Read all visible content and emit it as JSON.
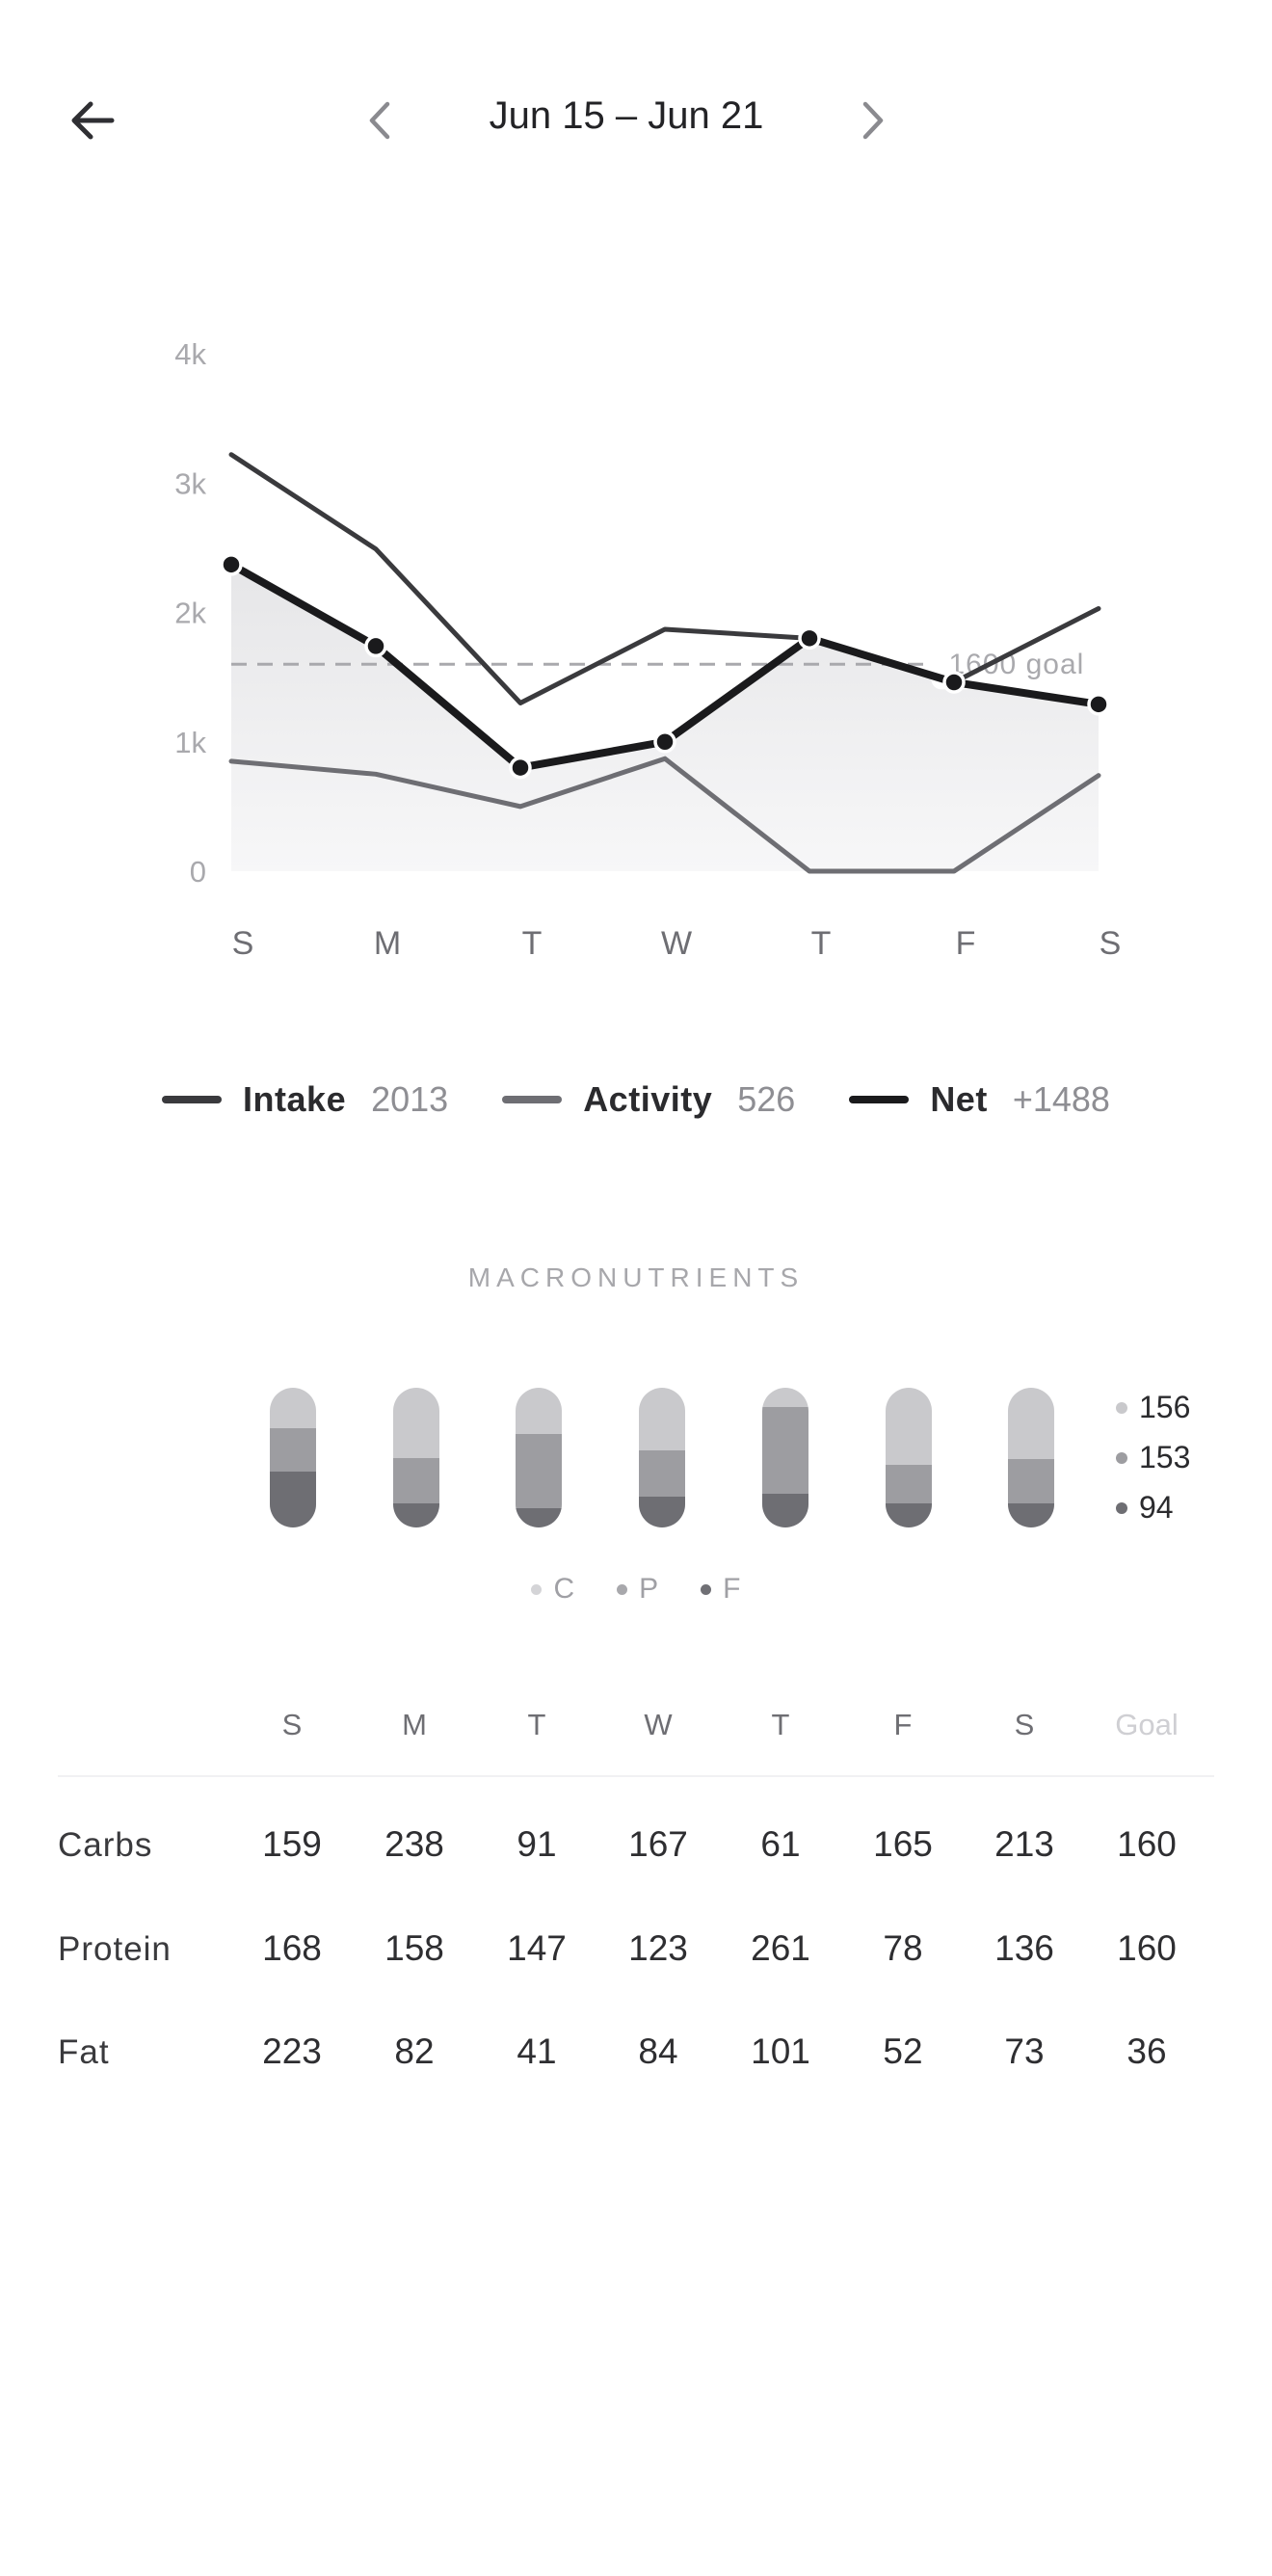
{
  "header": {
    "date_range": "Jun 15 – Jun 21"
  },
  "chart_data": {
    "type": "line",
    "categories": [
      "S",
      "M",
      "T",
      "W",
      "T",
      "F",
      "S"
    ],
    "y_tick_labels": [
      "0",
      "1k",
      "2k",
      "3k",
      "4k"
    ],
    "ylim": [
      0,
      4000
    ],
    "goal": {
      "value": 1600,
      "label": "1600 goal"
    },
    "series": [
      {
        "name": "Intake",
        "values": [
          3220,
          2490,
          1300,
          1870,
          1800,
          1460,
          2030
        ],
        "color": "#3a3a3d"
      },
      {
        "name": "Activity",
        "values": [
          850,
          750,
          500,
          870,
          0,
          0,
          740
        ],
        "color": "#6e6e73"
      },
      {
        "name": "Net",
        "values": [
          2370,
          1740,
          800,
          1000,
          1800,
          1460,
          1290
        ],
        "color": "#1a1a1c"
      }
    ]
  },
  "legend": [
    {
      "name": "Intake",
      "value": "2013",
      "color": "#3a3a3d"
    },
    {
      "name": "Activity",
      "value": "526",
      "color": "#6e6e73"
    },
    {
      "name": "Net",
      "value": "+1488",
      "color": "#1a1a1c"
    }
  ],
  "macros": {
    "title": "MACRONUTRIENTS",
    "days": [
      {
        "c": 0.29,
        "p": 0.31,
        "f": 0.4
      },
      {
        "c": 0.5,
        "p": 0.33,
        "f": 0.17
      },
      {
        "c": 0.33,
        "p": 0.53,
        "f": 0.14
      },
      {
        "c": 0.45,
        "p": 0.33,
        "f": 0.22
      },
      {
        "c": 0.14,
        "p": 0.62,
        "f": 0.24
      },
      {
        "c": 0.55,
        "p": 0.28,
        "f": 0.17
      },
      {
        "c": 0.51,
        "p": 0.32,
        "f": 0.17
      }
    ],
    "side_values": [
      "156",
      "153",
      "94"
    ],
    "legend": [
      "C",
      "P",
      "F"
    ],
    "colors": {
      "c": "#c9c9cc",
      "p": "#9d9da1",
      "f": "#6e6e73"
    }
  },
  "table": {
    "headers": [
      "S",
      "M",
      "T",
      "W",
      "T",
      "F",
      "S",
      "Goal"
    ],
    "rows": [
      {
        "label": "Carbs",
        "values": [
          "159",
          "238",
          "91",
          "167",
          "61",
          "165",
          "213",
          "160"
        ]
      },
      {
        "label": "Protein",
        "values": [
          "168",
          "158",
          "147",
          "123",
          "261",
          "78",
          "136",
          "160"
        ]
      },
      {
        "label": "Fat",
        "values": [
          "223",
          "82",
          "41",
          "84",
          "101",
          "52",
          "73",
          "36"
        ]
      }
    ]
  }
}
